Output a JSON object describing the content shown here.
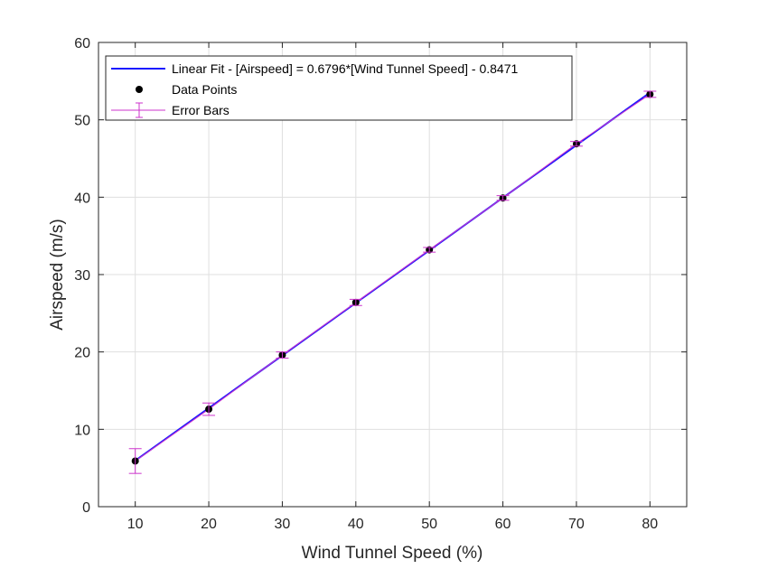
{
  "chart_data": {
    "type": "scatter",
    "title": "",
    "xlabel": "Wind Tunnel Speed (%)",
    "ylabel": "Airspeed (m/s)",
    "xlim": [
      5,
      85
    ],
    "ylim": [
      0,
      60
    ],
    "xticks": [
      10,
      20,
      30,
      40,
      50,
      60,
      70,
      80
    ],
    "yticks": [
      0,
      10,
      20,
      30,
      40,
      50,
      60
    ],
    "grid": true,
    "legend_position": "top-left",
    "series": [
      {
        "name": "Data Points",
        "kind": "points",
        "color": "#000000",
        "x": [
          10,
          20,
          30,
          40,
          50,
          60,
          70,
          80
        ],
        "y": [
          5.9,
          12.6,
          19.6,
          26.4,
          33.2,
          39.9,
          46.9,
          53.3
        ]
      },
      {
        "name": "Error Bars",
        "kind": "errorbar",
        "color": "#cc33cc",
        "x": [
          10,
          20,
          30,
          40,
          50,
          60,
          70,
          80
        ],
        "y": [
          5.9,
          12.6,
          19.6,
          26.4,
          33.2,
          39.9,
          46.9,
          53.3
        ],
        "error": [
          1.6,
          0.8,
          0.4,
          0.4,
          0.3,
          0.3,
          0.3,
          0.4
        ]
      },
      {
        "name": "Linear Fit - [Airspeed] = 0.6796*[Wind Tunnel Speed] - 0.8471",
        "kind": "line",
        "color": "#1a1aff",
        "slope": 0.6796,
        "intercept": -0.8471,
        "x_range": [
          10,
          80
        ]
      }
    ],
    "legend": [
      "Linear Fit - [Airspeed] = 0.6796*[Wind Tunnel Speed] - 0.8471",
      "Data Points",
      "Error Bars"
    ]
  }
}
